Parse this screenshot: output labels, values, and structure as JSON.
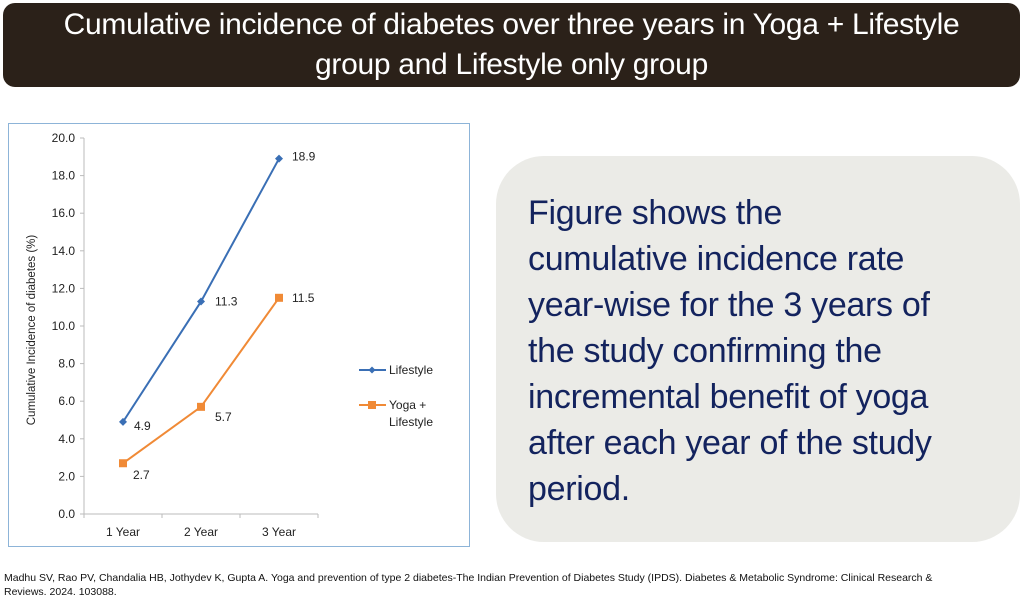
{
  "title": "Cumulative incidence of diabetes over three years in Yoga + Lifestyle group and Lifestyle only group",
  "callout_lines": [
    "Figure shows the",
    "cumulative incidence rate",
    "year-wise for the 3 years of",
    "the study confirming the",
    "incremental benefit of yoga",
    "after each year of the study",
    "period."
  ],
  "citation": {
    "line1": "Madhu SV, Rao PV, Chandalia HB, Jothydev K, Gupta A. Yoga and prevention of type 2 diabetes-The Indian Prevention of Diabetes Study (IPDS). Diabetes & Metabolic Syndrome: Clinical Research &",
    "line2": "Reviews. 2024. 103088."
  },
  "colors": {
    "banner_bg": "#2b2119",
    "callout_bg": "#ebebe7",
    "callout_text": "#13235e"
  },
  "chart_data": {
    "type": "line",
    "categories": [
      "1 Year",
      "2 Year",
      "3 Year"
    ],
    "ylabel": "Cumulative Incidence of diabetes (%)",
    "xlabel": "",
    "ylim": [
      0,
      20
    ],
    "yticks": [
      "0.0",
      "2.0",
      "4.0",
      "6.0",
      "8.0",
      "10.0",
      "12.0",
      "14.0",
      "16.0",
      "18.0",
      "20.0"
    ],
    "grid": false,
    "legend_position": "right",
    "series": [
      {
        "name": "Lifestyle",
        "values": [
          4.9,
          11.3,
          18.9
        ],
        "labels": [
          "4.9",
          "11.3",
          "18.9"
        ],
        "color": "#3a6fb5",
        "marker": "diamond"
      },
      {
        "name": "Yoga + Lifestyle",
        "name_lines": [
          "Yoga +",
          "Lifestyle"
        ],
        "values": [
          2.7,
          5.7,
          11.5
        ],
        "labels": [
          "2.7",
          "5.7",
          "11.5"
        ],
        "color": "#f08a36",
        "marker": "square"
      }
    ]
  }
}
